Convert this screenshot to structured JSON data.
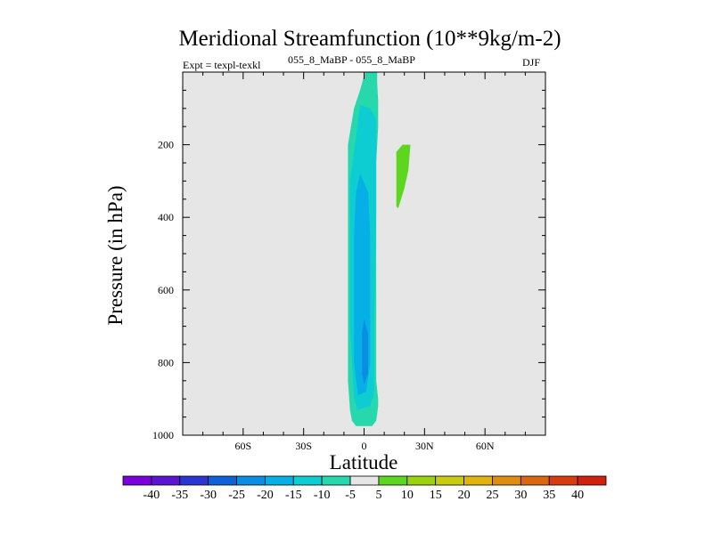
{
  "chart_data": {
    "type": "contour",
    "title": "Meridional Streamfunction (10**9kg/m-2)",
    "experiment": "Expt = texpl-texkl",
    "comparison": "055_8_MaBP - 055_8_MaBP",
    "season": "DJF",
    "xlabel": "Latitude",
    "ylabel": "Pressure (in hPa)",
    "xlim": [
      -90,
      90
    ],
    "ylim": [
      1000,
      0
    ],
    "x_ticks": [
      {
        "value": -60,
        "label": "60S"
      },
      {
        "value": -30,
        "label": "30S"
      },
      {
        "value": 0,
        "label": "0"
      },
      {
        "value": 30,
        "label": "30N"
      },
      {
        "value": 60,
        "label": "60N"
      }
    ],
    "y_ticks": [
      {
        "value": 200,
        "label": "200"
      },
      {
        "value": 400,
        "label": "400"
      },
      {
        "value": 600,
        "label": "600"
      },
      {
        "value": 800,
        "label": "800"
      },
      {
        "value": 1000,
        "label": "1000"
      }
    ],
    "background_color": "#e6e6e6",
    "colorbar": {
      "labels": [
        "-40",
        "-35",
        "-30",
        "-25",
        "-20",
        "-15",
        "-10",
        "-5",
        "5",
        "10",
        "15",
        "20",
        "25",
        "30",
        "35",
        "40"
      ],
      "colors": [
        "#7a00dc",
        "#5a14d2",
        "#2a35d2",
        "#1060d8",
        "#0a8ee4",
        "#06b0e6",
        "#0ecdd2",
        "#26d8ac",
        "#e6e6e6",
        "#5cd61e",
        "#9ad20e",
        "#c8cc10",
        "#e0b40e",
        "#e08c10",
        "#dc6610",
        "#d83c0e",
        "#d0200e"
      ]
    },
    "filled_regions": [
      {
        "level": "-10 to -5",
        "color": "#26d8ac",
        "points": [
          [
            0.5,
            0
          ],
          [
            6.5,
            0
          ],
          [
            6.5,
            30
          ],
          [
            7,
            80
          ],
          [
            7,
            150
          ],
          [
            6,
            250
          ],
          [
            6,
            850
          ],
          [
            7,
            900
          ],
          [
            7,
            920
          ],
          [
            6,
            960
          ],
          [
            4,
            975
          ],
          [
            -4,
            975
          ],
          [
            -6,
            960
          ],
          [
            -7,
            930
          ],
          [
            -8,
            850
          ],
          [
            -8,
            600
          ],
          [
            -8,
            300
          ],
          [
            -8,
            200
          ],
          [
            -5,
            100
          ],
          [
            -2,
            50
          ]
        ]
      },
      {
        "level": "-15 to -10",
        "color": "#0ecdd2",
        "points": [
          [
            -2,
            90
          ],
          [
            3,
            100
          ],
          [
            6,
            130
          ],
          [
            6,
            400
          ],
          [
            5,
            700
          ],
          [
            5,
            880
          ],
          [
            3,
            920
          ],
          [
            -3,
            930
          ],
          [
            -5,
            900
          ],
          [
            -7,
            700
          ],
          [
            -7,
            300
          ],
          [
            -4,
            180
          ]
        ]
      },
      {
        "level": "-20 to -15",
        "color": "#06b0e6",
        "points": [
          [
            -2,
            280
          ],
          [
            2,
            330
          ],
          [
            3,
            450
          ],
          [
            3,
            800
          ],
          [
            1,
            880
          ],
          [
            -3,
            890
          ],
          [
            -5,
            800
          ],
          [
            -5,
            450
          ],
          [
            -4,
            330
          ]
        ]
      },
      {
        "level": "-25 to -20",
        "color": "#0a8ee4",
        "points": [
          [
            0,
            680
          ],
          [
            2,
            720
          ],
          [
            2,
            830
          ],
          [
            0,
            860
          ],
          [
            -1,
            830
          ],
          [
            -1,
            720
          ]
        ]
      },
      {
        "level": "5 to 10",
        "color": "#5cd61e",
        "points": [
          [
            19,
            200
          ],
          [
            23,
            200
          ],
          [
            22,
            270
          ],
          [
            20,
            320
          ],
          [
            17,
            375
          ],
          [
            16,
            370
          ],
          [
            16,
            300
          ],
          [
            16,
            220
          ]
        ]
      }
    ]
  }
}
